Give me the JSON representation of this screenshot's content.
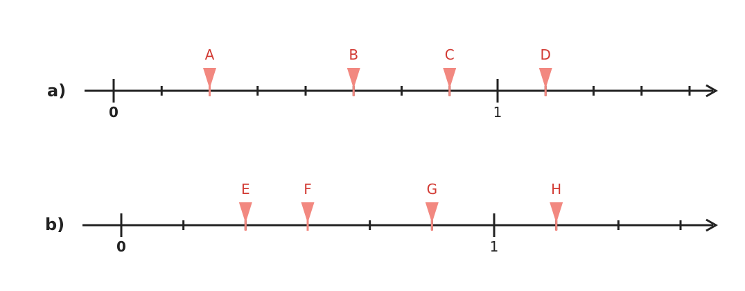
{
  "colors": {
    "line": "#222222",
    "marker": "#f28880",
    "marker_label": "#d23a33"
  },
  "lines": [
    {
      "label": "a)",
      "subdivisions": 8,
      "marks_after_one": 4,
      "tick_labels": [
        {
          "text": "0",
          "value": 0,
          "bold": true
        },
        {
          "text": "1",
          "value": 1,
          "bold": false
        }
      ],
      "markers": [
        {
          "label": "A",
          "value": 0.25
        },
        {
          "label": "B",
          "value": 0.625
        },
        {
          "label": "C",
          "value": 0.875
        },
        {
          "label": "D",
          "value": 1.125
        }
      ]
    },
    {
      "label": "b)",
      "subdivisions": 6,
      "marks_after_one": 3,
      "tick_labels": [
        {
          "text": "0",
          "value": 0,
          "bold": true
        },
        {
          "text": "1",
          "value": 1,
          "bold": false
        }
      ],
      "markers": [
        {
          "label": "E",
          "value": 0.3333
        },
        {
          "label": "F",
          "value": 0.5
        },
        {
          "label": "G",
          "value": 0.8333
        },
        {
          "label": "H",
          "value": 1.1667
        }
      ]
    }
  ]
}
